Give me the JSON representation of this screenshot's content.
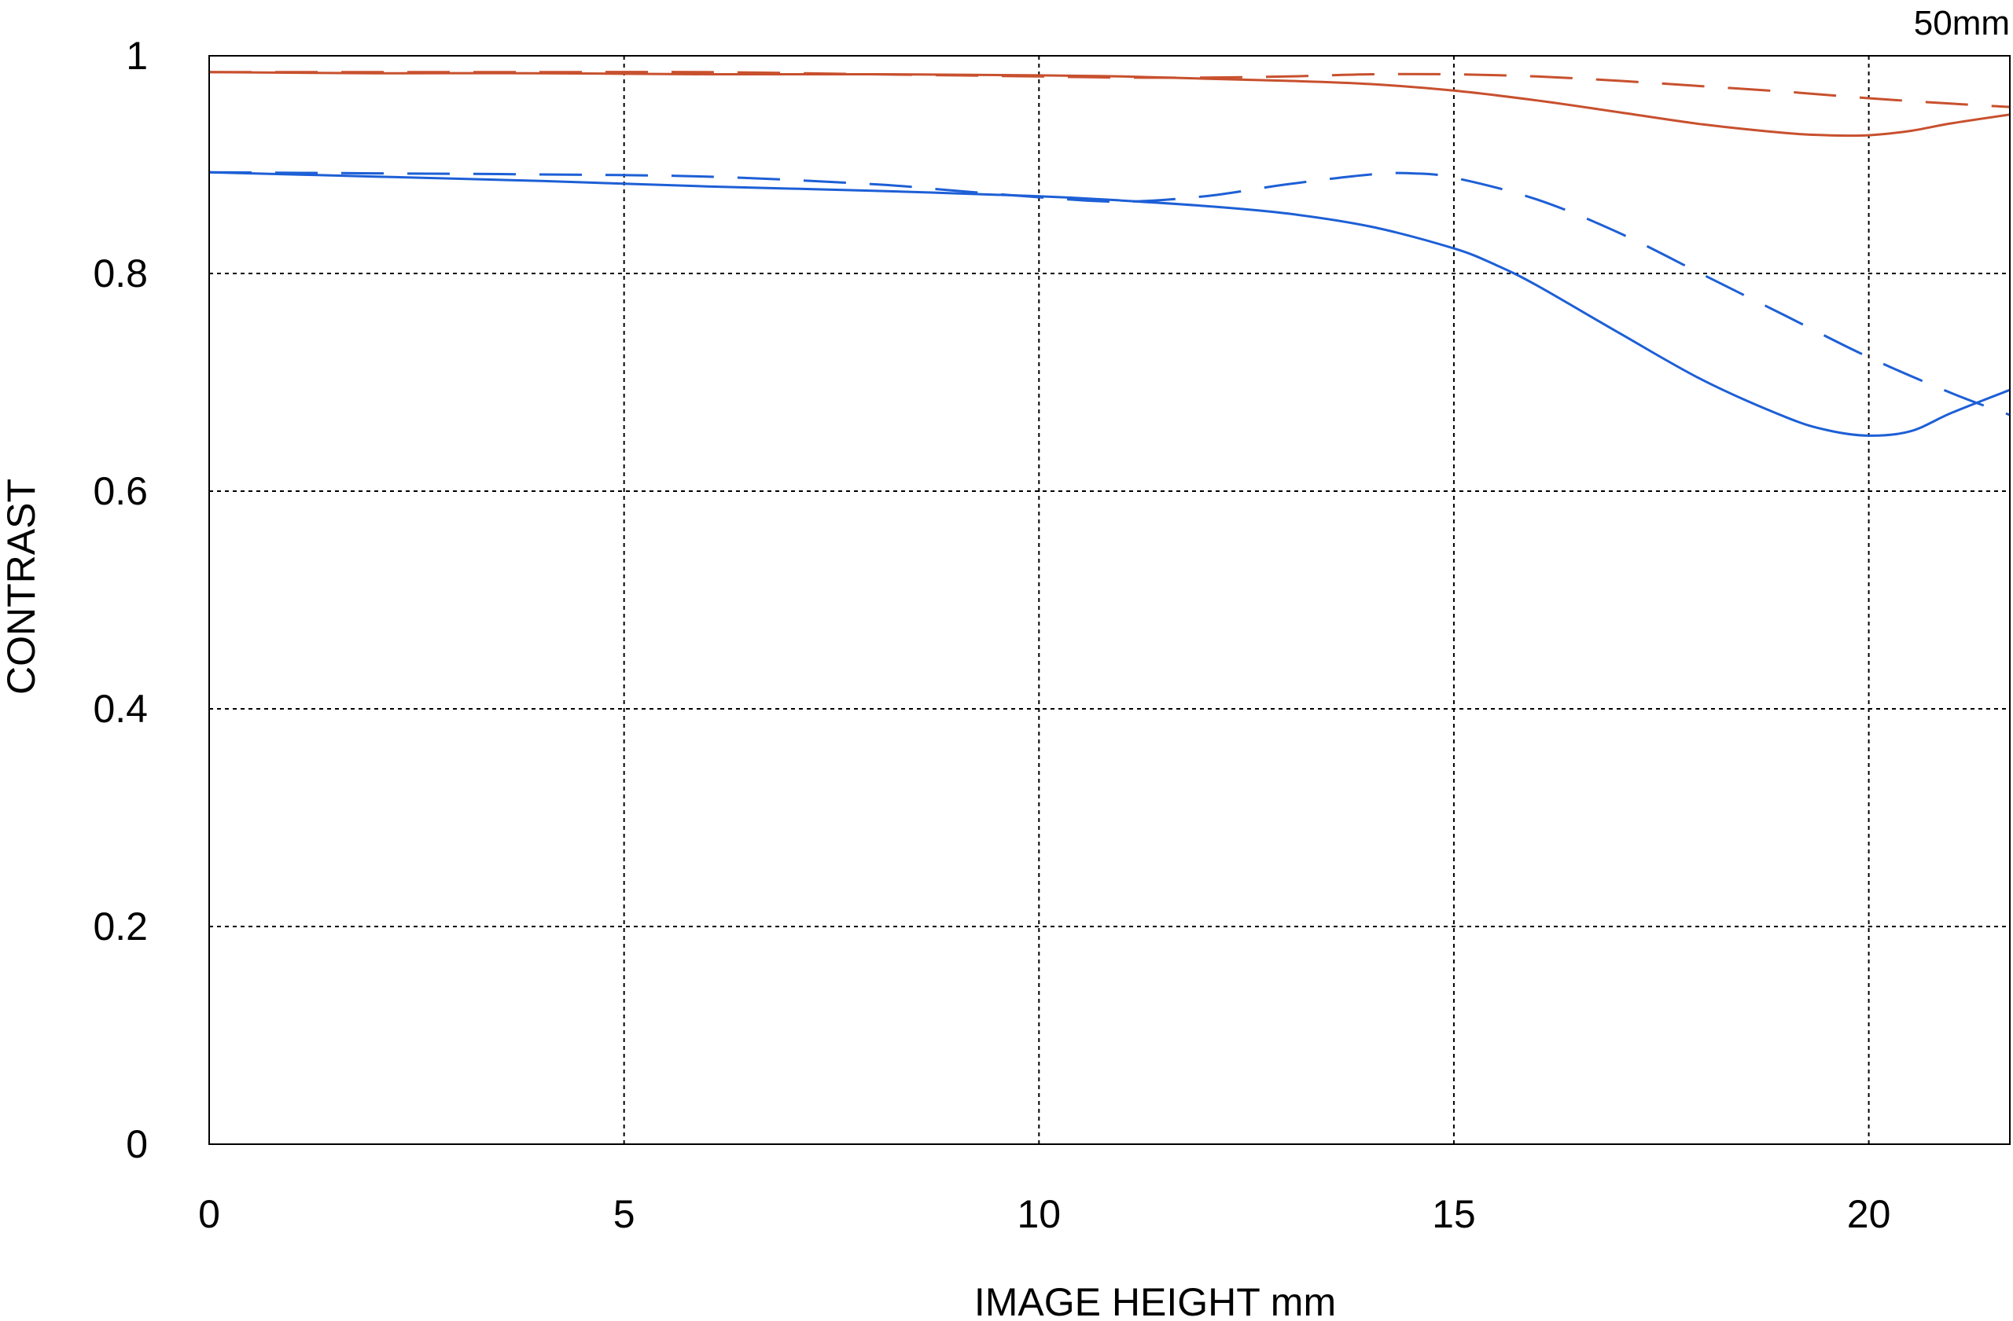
{
  "chart_data": {
    "type": "line",
    "title": "",
    "corner_label": "50mm",
    "xlabel": "IMAGE HEIGHT  mm",
    "ylabel": "CONTRAST",
    "xlim": [
      0,
      21.7
    ],
    "ylim": [
      0,
      1
    ],
    "x_ticks": [
      0,
      5,
      10,
      15,
      20
    ],
    "x_tick_labels": [
      "0",
      "5",
      "10",
      "15",
      "20"
    ],
    "y_ticks": [
      0,
      0.2,
      0.4,
      0.6,
      0.8,
      1
    ],
    "y_tick_labels": [
      "0",
      "0.2",
      "0.4",
      "0.6",
      "0.8",
      "1"
    ],
    "grid": true,
    "legend": "none",
    "series": [
      {
        "color": "#c8502e",
        "style": "solid",
        "x": [
          0,
          2,
          4,
          6,
          8,
          10,
          11,
          12,
          13,
          14,
          15,
          16,
          17,
          18,
          19,
          19.5,
          20,
          20.5,
          21,
          21.7
        ],
        "y": [
          0.985,
          0.984,
          0.984,
          0.983,
          0.983,
          0.982,
          0.981,
          0.979,
          0.977,
          0.974,
          0.968,
          0.959,
          0.948,
          0.937,
          0.929,
          0.927,
          0.927,
          0.931,
          0.938,
          0.946
        ]
      },
      {
        "color": "#c8502e",
        "style": "dashed",
        "x": [
          0,
          2,
          4,
          6,
          8,
          9,
          10,
          11,
          12,
          13,
          14,
          15,
          16,
          17,
          18,
          19,
          20,
          21,
          21.7
        ],
        "y": [
          0.985,
          0.985,
          0.985,
          0.985,
          0.983,
          0.982,
          0.981,
          0.98,
          0.98,
          0.981,
          0.983,
          0.983,
          0.981,
          0.977,
          0.972,
          0.967,
          0.961,
          0.956,
          0.953
        ]
      },
      {
        "color": "#1d5fd6",
        "style": "solid",
        "x": [
          0,
          2,
          4,
          6,
          8,
          10,
          11,
          12,
          13,
          14,
          15,
          15.5,
          16,
          17,
          18,
          19,
          19.5,
          20,
          20.5,
          21,
          21.7
        ],
        "y": [
          0.893,
          0.889,
          0.885,
          0.88,
          0.876,
          0.871,
          0.867,
          0.862,
          0.855,
          0.843,
          0.823,
          0.808,
          0.789,
          0.745,
          0.702,
          0.668,
          0.656,
          0.651,
          0.655,
          0.672,
          0.693
        ]
      },
      {
        "color": "#1d5fd6",
        "style": "dashed",
        "x": [
          0,
          2,
          4,
          6,
          8,
          9,
          10,
          11,
          12,
          13,
          14,
          14.5,
          15,
          16,
          17,
          18,
          19,
          20,
          21,
          21.7
        ],
        "y": [
          0.893,
          0.892,
          0.891,
          0.889,
          0.882,
          0.876,
          0.87,
          0.866,
          0.871,
          0.882,
          0.891,
          0.892,
          0.888,
          0.868,
          0.837,
          0.799,
          0.761,
          0.723,
          0.69,
          0.67
        ]
      }
    ]
  }
}
